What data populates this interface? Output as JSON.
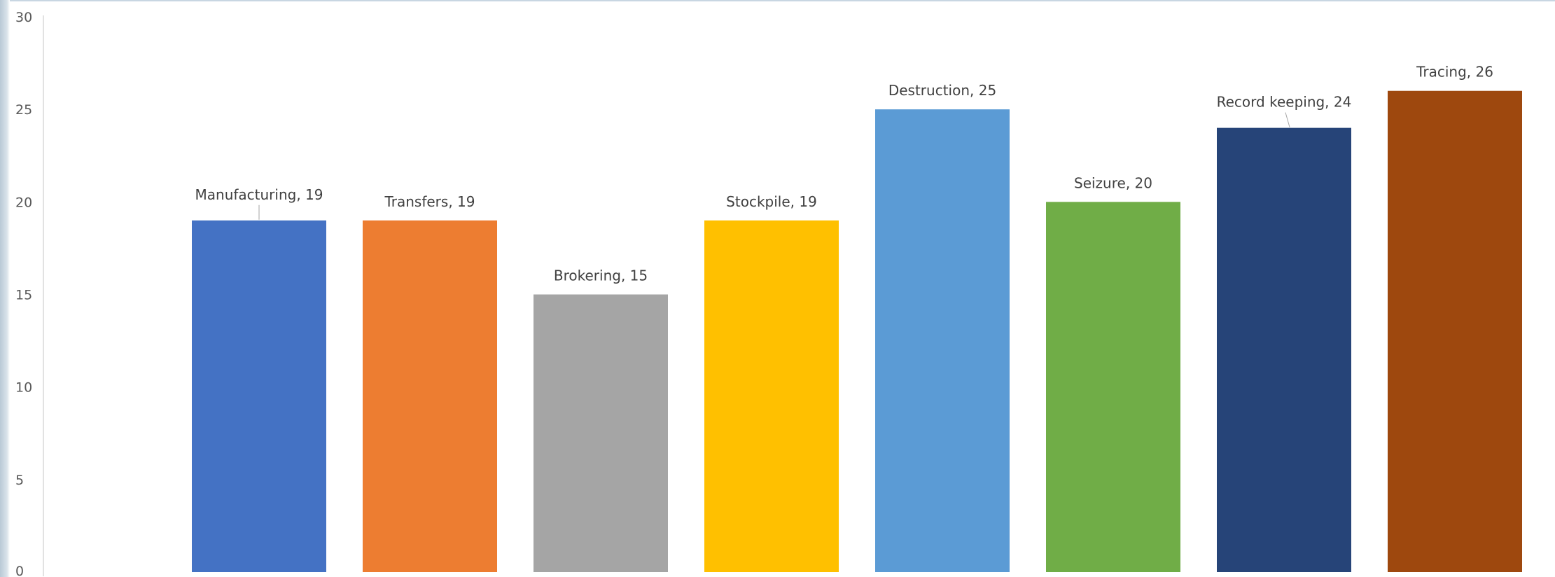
{
  "chart_data": {
    "type": "bar",
    "categories": [
      "Manufacturing",
      "Transfers",
      "Brokering",
      "Stockpile",
      "Destruction",
      "Seizure",
      "Record keeping",
      "Tracing"
    ],
    "values": [
      19,
      19,
      15,
      19,
      25,
      20,
      24,
      26
    ],
    "data_labels": [
      "Manufacturing, 19",
      "Transfers, 19",
      "Brokering, 15",
      "Stockpile, 19",
      "Destruction, 25",
      "Seizure, 20",
      "Record keeping, 24",
      "Tracing, 26"
    ],
    "colors": [
      "#4472C4",
      "#ED7D31",
      "#A5A5A5",
      "#FFC000",
      "#5B9BD5",
      "#70AD47",
      "#264478",
      "#9E480E"
    ],
    "ylim": [
      0,
      30
    ],
    "yticks": [
      0,
      5,
      10,
      15,
      20,
      25,
      30
    ],
    "grid": false,
    "legend": "none",
    "title": "",
    "xlabel": "",
    "ylabel": ""
  }
}
